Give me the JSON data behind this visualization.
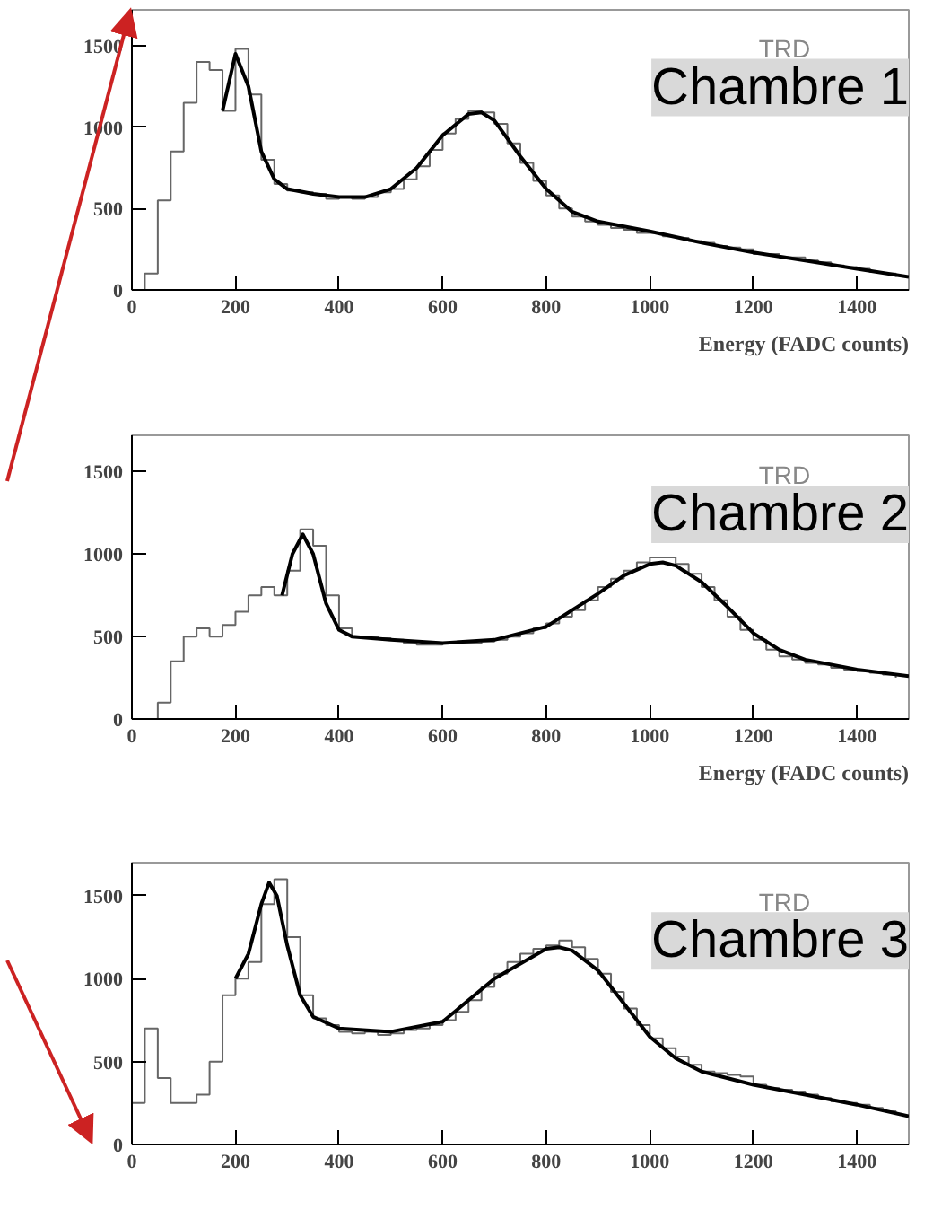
{
  "chart_data": [
    {
      "type": "step",
      "xlabel": "Energy (FADC counts)",
      "annotations": [
        "TRD",
        "Chambre 1"
      ],
      "xlim": [
        0,
        1500
      ],
      "ylim": [
        0,
        1720
      ],
      "xticks": [
        0,
        200,
        400,
        600,
        800,
        1000,
        1200,
        1400
      ],
      "yticks": [
        0,
        500,
        1000,
        1500
      ],
      "grid": false,
      "series": [
        {
          "color": "#666666",
          "x": [
            0,
            25,
            50,
            75,
            100,
            125,
            150,
            175,
            200,
            225,
            250,
            275,
            300,
            325,
            350,
            375,
            400,
            425,
            450,
            475,
            500,
            525,
            550,
            575,
            600,
            625,
            650,
            675,
            700,
            725,
            750,
            775,
            800,
            825,
            850,
            875,
            900,
            925,
            950,
            975,
            1000,
            1025,
            1050,
            1075,
            1100,
            1125,
            1150,
            1175,
            1200,
            1225,
            1250,
            1275,
            1300,
            1325,
            1350,
            1375,
            1400,
            1425,
            1450,
            1475
          ],
          "values": [
            0,
            100,
            550,
            850,
            1150,
            1400,
            1350,
            1100,
            1480,
            1200,
            800,
            650,
            610,
            600,
            590,
            560,
            570,
            560,
            570,
            600,
            620,
            680,
            760,
            860,
            960,
            1050,
            1100,
            1090,
            1020,
            900,
            780,
            670,
            580,
            500,
            450,
            420,
            400,
            380,
            370,
            350,
            350,
            330,
            320,
            300,
            290,
            270,
            260,
            250,
            220,
            220,
            200,
            200,
            180,
            170,
            150,
            140,
            130,
            110,
            100,
            80
          ]
        },
        {
          "type": "line",
          "color": "#000000",
          "x": [
            175,
            200,
            225,
            250,
            275,
            300,
            350,
            400,
            450,
            500,
            550,
            600,
            650,
            675,
            700,
            750,
            800,
            850,
            900,
            1000,
            1100,
            1200,
            1300,
            1400,
            1500
          ],
          "values": [
            1100,
            1450,
            1250,
            850,
            680,
            620,
            590,
            570,
            570,
            620,
            750,
            950,
            1080,
            1090,
            1040,
            820,
            620,
            480,
            420,
            360,
            290,
            230,
            180,
            130,
            80
          ]
        }
      ]
    },
    {
      "type": "step",
      "xlabel": "Energy (FADC counts)",
      "annotations": [
        "TRD",
        "Chambre 2"
      ],
      "xlim": [
        0,
        1500
      ],
      "ylim": [
        0,
        1720
      ],
      "xticks": [
        0,
        200,
        400,
        600,
        800,
        1000,
        1200,
        1400
      ],
      "yticks": [
        0,
        500,
        1000,
        1500
      ],
      "grid": false,
      "series": [
        {
          "color": "#666666",
          "x": [
            0,
            25,
            50,
            75,
            100,
            125,
            150,
            175,
            200,
            225,
            250,
            275,
            300,
            325,
            350,
            375,
            400,
            425,
            450,
            475,
            500,
            525,
            550,
            575,
            600,
            625,
            650,
            675,
            700,
            725,
            750,
            775,
            800,
            825,
            850,
            875,
            900,
            925,
            950,
            975,
            1000,
            1025,
            1050,
            1075,
            1100,
            1125,
            1150,
            1175,
            1200,
            1225,
            1250,
            1275,
            1300,
            1325,
            1350,
            1375,
            1400,
            1425,
            1450,
            1475
          ],
          "values": [
            0,
            0,
            100,
            350,
            500,
            550,
            500,
            570,
            650,
            750,
            800,
            750,
            900,
            1150,
            1050,
            750,
            550,
            500,
            500,
            490,
            480,
            460,
            450,
            450,
            460,
            460,
            460,
            470,
            480,
            500,
            520,
            550,
            580,
            620,
            660,
            720,
            800,
            850,
            900,
            950,
            980,
            980,
            940,
            880,
            800,
            720,
            620,
            540,
            480,
            420,
            380,
            360,
            340,
            330,
            310,
            300,
            290,
            280,
            270,
            250
          ]
        },
        {
          "type": "line",
          "color": "#000000",
          "x": [
            290,
            310,
            330,
            350,
            375,
            400,
            425,
            500,
            600,
            700,
            800,
            900,
            950,
            1000,
            1025,
            1050,
            1100,
            1150,
            1200,
            1250,
            1300,
            1400,
            1500
          ],
          "values": [
            750,
            1000,
            1120,
            1000,
            700,
            540,
            500,
            480,
            460,
            480,
            560,
            760,
            870,
            940,
            950,
            930,
            830,
            680,
            520,
            420,
            360,
            300,
            260
          ]
        }
      ]
    },
    {
      "type": "step",
      "annotations": [
        "TRD",
        "Chambre 3"
      ],
      "xlim": [
        0,
        1500
      ],
      "ylim": [
        0,
        1700
      ],
      "xticks": [
        0,
        200,
        400,
        600,
        800,
        1000,
        1200,
        1400
      ],
      "yticks": [
        0,
        500,
        1000,
        1500
      ],
      "grid": false,
      "series": [
        {
          "color": "#666666",
          "x": [
            0,
            25,
            50,
            75,
            100,
            125,
            150,
            175,
            200,
            225,
            250,
            275,
            300,
            325,
            350,
            375,
            400,
            425,
            450,
            475,
            500,
            525,
            550,
            575,
            600,
            625,
            650,
            675,
            700,
            725,
            750,
            775,
            800,
            825,
            850,
            875,
            900,
            925,
            950,
            975,
            1000,
            1025,
            1050,
            1075,
            1100,
            1125,
            1150,
            1175,
            1200,
            1225,
            1250,
            1275,
            1300,
            1325,
            1350,
            1375,
            1400,
            1425,
            1450,
            1475
          ],
          "values": [
            250,
            700,
            400,
            250,
            250,
            300,
            500,
            900,
            1000,
            1100,
            1450,
            1600,
            1250,
            900,
            760,
            720,
            680,
            670,
            680,
            660,
            670,
            690,
            700,
            720,
            750,
            800,
            870,
            950,
            1030,
            1100,
            1150,
            1180,
            1200,
            1230,
            1190,
            1120,
            1030,
            920,
            820,
            720,
            640,
            580,
            530,
            480,
            440,
            430,
            420,
            410,
            360,
            340,
            330,
            320,
            300,
            280,
            260,
            250,
            240,
            220,
            200,
            180
          ]
        },
        {
          "type": "line",
          "color": "#000000",
          "x": [
            200,
            225,
            250,
            265,
            280,
            300,
            325,
            350,
            400,
            500,
            600,
            700,
            800,
            825,
            850,
            900,
            950,
            1000,
            1050,
            1100,
            1200,
            1300,
            1400,
            1500
          ],
          "values": [
            1000,
            1150,
            1450,
            1580,
            1500,
            1200,
            900,
            770,
            700,
            680,
            740,
            1000,
            1180,
            1190,
            1170,
            1050,
            850,
            650,
            520,
            440,
            360,
            300,
            240,
            170
          ]
        }
      ]
    }
  ]
}
